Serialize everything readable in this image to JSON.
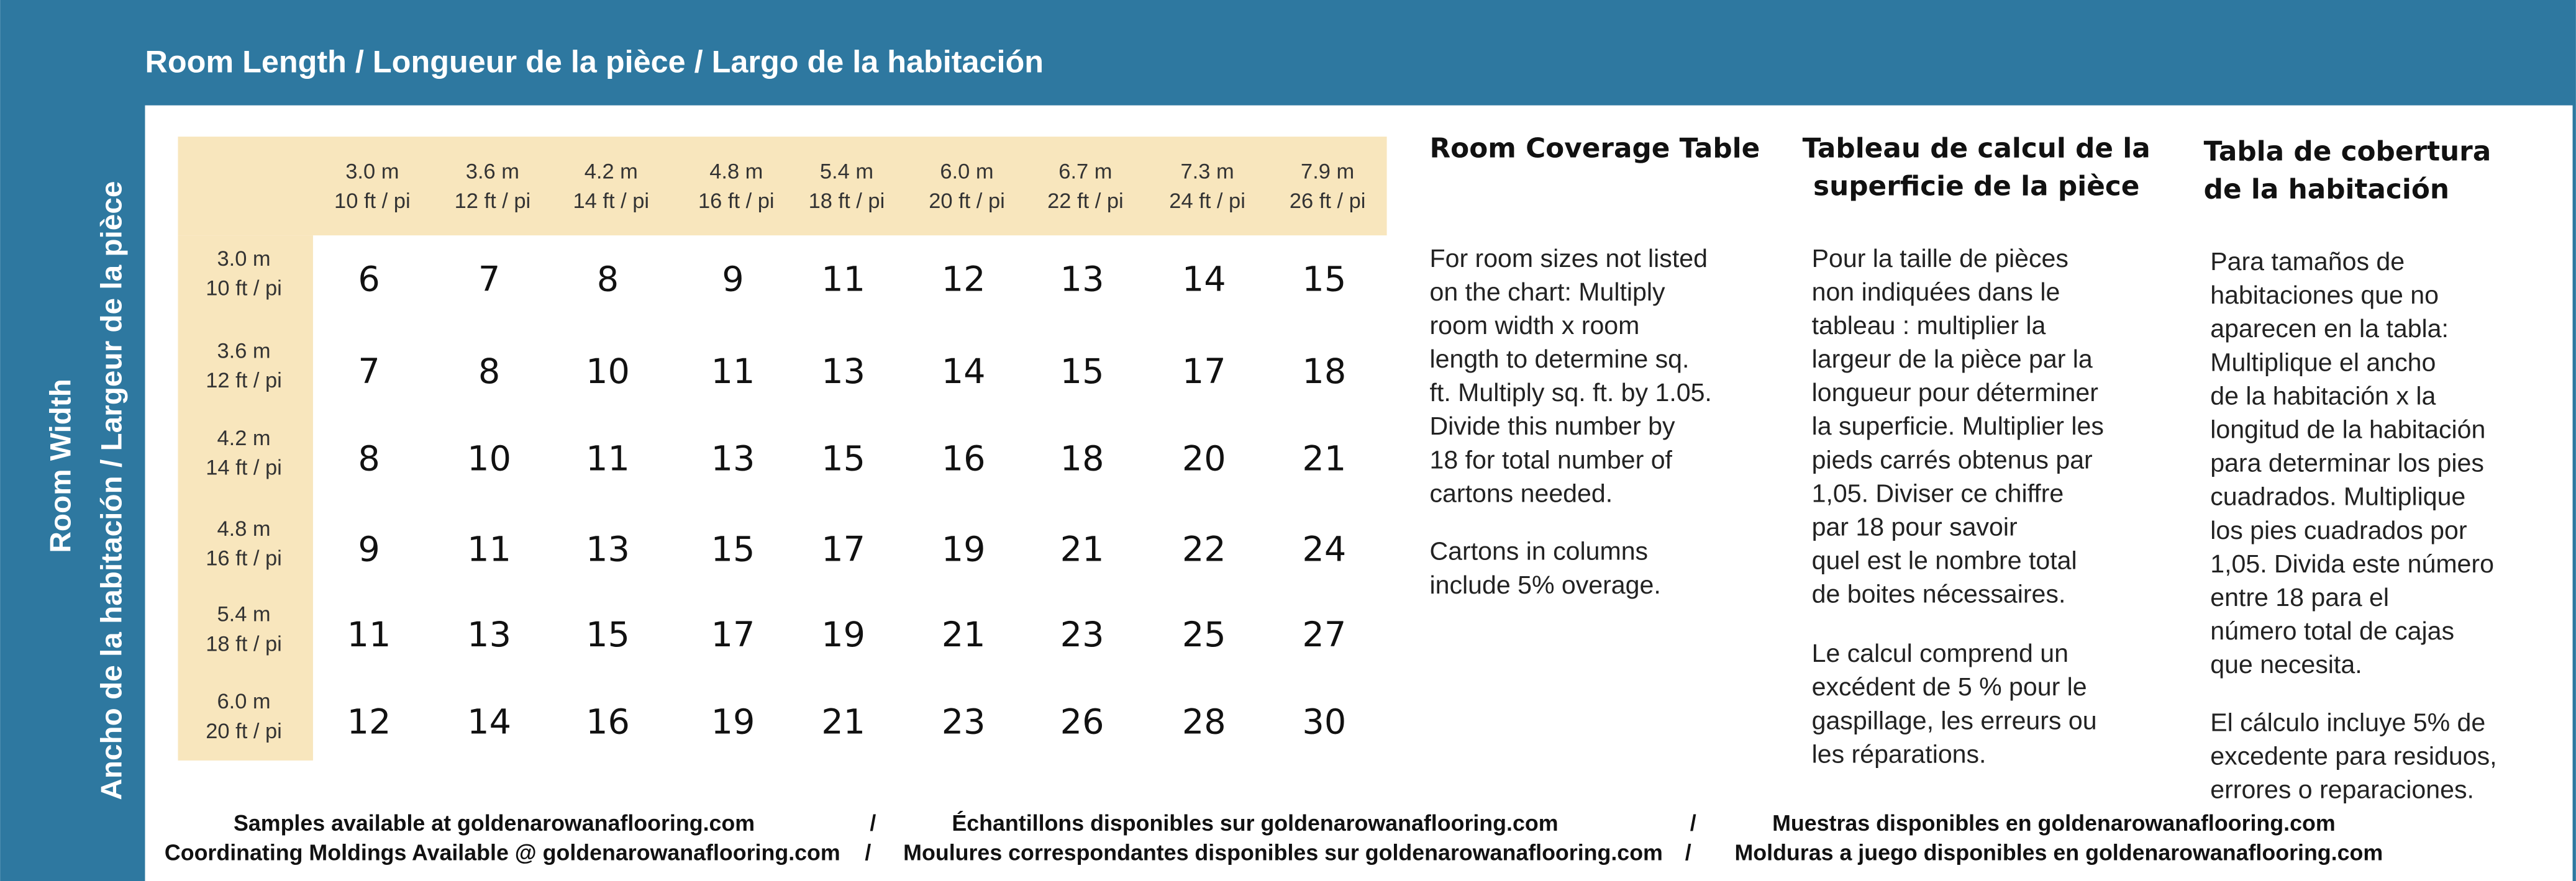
{
  "header": {
    "title": "Room Length  /  Longueur de la pièce  /  Largo de la habitación"
  },
  "side": {
    "primary": "Room Width",
    "secondary": "Ancho de la habitación  /  Largeur de la pièce"
  },
  "table": {
    "columns": [
      [
        "3.0 m",
        "10 ft / pi"
      ],
      [
        "3.6 m",
        "12 ft / pi"
      ],
      [
        "4.2 m",
        "14 ft / pi"
      ],
      [
        "4.8 m",
        "16 ft / pi"
      ],
      [
        "5.4 m",
        "18 ft / pi"
      ],
      [
        "6.0 m",
        "20 ft / pi"
      ],
      [
        "6.7 m",
        "22 ft / pi"
      ],
      [
        "7.3 m",
        "24 ft / pi"
      ],
      [
        "7.9 m",
        "26 ft / pi"
      ]
    ],
    "row_headers": [
      [
        "3.0 m",
        "10 ft / pi"
      ],
      [
        "3.6 m",
        "12 ft / pi"
      ],
      [
        "4.2 m",
        "14 ft / pi"
      ],
      [
        "4.8 m",
        "16 ft / pi"
      ],
      [
        "5.4 m",
        "18 ft / pi"
      ],
      [
        "6.0 m",
        "20 ft / pi"
      ]
    ],
    "rows": [
      [
        6,
        7,
        8,
        9,
        11,
        12,
        13,
        14,
        15
      ],
      [
        7,
        8,
        10,
        11,
        13,
        14,
        15,
        17,
        18
      ],
      [
        8,
        10,
        11,
        13,
        15,
        16,
        18,
        20,
        21
      ],
      [
        9,
        11,
        13,
        15,
        17,
        19,
        21,
        22,
        24
      ],
      [
        11,
        13,
        15,
        17,
        19,
        21,
        23,
        25,
        27
      ],
      [
        12,
        14,
        16,
        19,
        21,
        23,
        26,
        28,
        30
      ]
    ]
  },
  "notes": [
    {
      "heading": [
        "Room Coverage Table"
      ],
      "paragraphs": [
        [
          "For room sizes not listed",
          "on the chart: Multiply",
          "room width x room",
          "length to determine sq.",
          "ft. Multiply sq. ft. by 1.05.",
          "Divide this number by",
          "18  for total number of",
          "cartons needed."
        ],
        [
          "Cartons in columns",
          "include 5% overage."
        ]
      ]
    },
    {
      "heading": [
        "Tableau de calcul de la",
        "superficie de la pièce"
      ],
      "paragraphs": [
        [
          "Pour la taille de pièces",
          "non indiquées dans le",
          "tableau :  multiplier la",
          "largeur de la pièce par la",
          "longueur pour déterminer",
          "la superficie. Multiplier les",
          "pieds carrés obtenus par",
          "1,05. Diviser ce chiffre",
          "par 18  pour savoir",
          "quel est le nombre total",
          "de boites nécessaires."
        ],
        [
          "Le calcul comprend un",
          "excédent de 5 % pour le",
          "gaspillage, les erreurs ou",
          "les réparations."
        ]
      ]
    },
    {
      "heading": [
        "Tabla de cobertura",
        "de la habitación"
      ],
      "paragraphs": [
        [
          "Para tamaños de",
          "habitaciones que no",
          "aparecen en la tabla:",
          "Multiplique el ancho",
          "de la habitación x la",
          "longitud de la habitación",
          "para determinar los pies",
          "cuadrados. Multiplique",
          "los pies cuadrados por",
          "1,05. Divida este número",
          "entre 18  para el",
          "número total de cajas",
          "que necesita."
        ],
        [
          "El cálculo incluye 5% de",
          "excedente para residuos,",
          "errores o reparaciones."
        ]
      ]
    }
  ],
  "footer": {
    "separator": "/",
    "lines": [
      [
        "Samples available at goldenarowanaflooring.com",
        "Échantillons disponibles sur goldenarowanaflooring.com",
        "Muestras disponibles en goldenarowanaflooring.com"
      ],
      [
        "Coordinating Moldings Available @ goldenarowanaflooring.com",
        "Moulures correspondantes disponibles sur goldenarowanaflooring.com",
        "Molduras a juego disponibles en goldenarowanaflooring.com"
      ]
    ]
  }
}
